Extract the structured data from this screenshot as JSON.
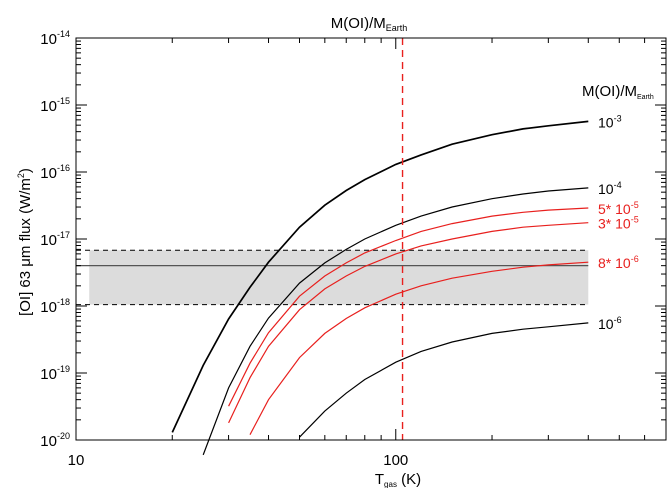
{
  "chart_data": {
    "type": "line",
    "title": {
      "base": "M(OI)/M",
      "sub": "Earth"
    },
    "xlabel": {
      "base": "T",
      "sub": "gas",
      "unit": " (K)"
    },
    "ylabel": {
      "prefix": "[OI] 63 ",
      "mu": "μ",
      "rest": "m flux (W/m",
      "sup": "2",
      "end": ")"
    },
    "legend_title": {
      "base": "M(OI)/M",
      "sub": "Earth"
    },
    "x_scale": "log",
    "y_scale": "log",
    "xlim": [
      10,
      700
    ],
    "ylim": [
      1e-20,
      1e-14
    ],
    "x_tick_labels": [
      {
        "value": 10,
        "text": "10"
      },
      {
        "value": 100,
        "text": "100"
      }
    ],
    "y_tick_labels": [
      {
        "value": 1e-14,
        "base": "10",
        "sup": "-14"
      },
      {
        "value": 1e-15,
        "base": "10",
        "sup": "-15"
      },
      {
        "value": 1e-16,
        "base": "10",
        "sup": "-16"
      },
      {
        "value": 1e-17,
        "base": "10",
        "sup": "-17"
      },
      {
        "value": 1e-18,
        "base": "10",
        "sup": "-18"
      },
      {
        "value": 1e-19,
        "base": "10",
        "sup": "-19"
      },
      {
        "value": 1e-20,
        "base": "10",
        "sup": "-20"
      }
    ],
    "x": [
      20,
      25,
      30,
      35,
      40,
      50,
      60,
      70,
      80,
      100,
      120,
      150,
      200,
      250,
      300,
      400
    ],
    "series": [
      {
        "color": "#000000",
        "label_base": "10",
        "label_sup": "-3",
        "values": [
          1.3e-20,
          1.3e-19,
          6.4e-19,
          1.9e-18,
          4.5e-18,
          1.5e-17,
          3.2e-17,
          5.3e-17,
          7.7e-17,
          1.3e-16,
          1.8e-16,
          2.6e-16,
          3.6e-16,
          4.4e-16,
          4.9e-16,
          5.7e-16
        ]
      },
      {
        "color": "#000000",
        "label_base": "10",
        "label_sup": "-4",
        "values": [
          null,
          6e-21,
          6e-20,
          2.5e-19,
          6.6e-19,
          2.2e-18,
          4.4e-18,
          7e-18,
          1e-17,
          1.6e-17,
          2.2e-17,
          3e-17,
          4e-17,
          4.7e-17,
          5.2e-17,
          5.8e-17
        ]
      },
      {
        "color": "#e8201e",
        "label_base": "5* 10",
        "label_sup": "-5",
        "values": [
          null,
          null,
          3.2e-20,
          1.4e-19,
          4e-19,
          1.4e-18,
          2.8e-18,
          4.4e-18,
          6.2e-18,
          9.5e-18,
          1.3e-17,
          1.7e-17,
          2.2e-17,
          2.5e-17,
          2.7e-17,
          2.9e-17
        ]
      },
      {
        "color": "#e8201e",
        "label_base": "3* 10",
        "label_sup": "-5",
        "values": [
          null,
          null,
          1.8e-20,
          8.5e-20,
          2.5e-19,
          8.8e-19,
          1.8e-18,
          2.8e-18,
          3.9e-18,
          6e-18,
          7.9e-18,
          1e-17,
          1.3e-17,
          1.5e-17,
          1.6e-17,
          1.75e-17
        ]
      },
      {
        "color": "#e8201e",
        "label_base": "8* 10",
        "label_sup": "-6",
        "values": [
          null,
          null,
          null,
          1.2e-20,
          4e-20,
          1.7e-19,
          3.9e-19,
          6.5e-19,
          9.4e-19,
          1.5e-18,
          2e-18,
          2.6e-18,
          3.3e-18,
          3.8e-18,
          4.1e-18,
          4.5e-18
        ]
      },
      {
        "color": "#000000",
        "label_base": "10",
        "label_sup": "-6",
        "values": [
          null,
          null,
          null,
          null,
          null,
          1.1e-20,
          2.7e-20,
          5e-20,
          8e-20,
          1.45e-19,
          2.1e-19,
          2.9e-19,
          3.9e-19,
          4.5e-19,
          4.9e-19,
          5.6e-19
        ]
      }
    ],
    "observed_band": {
      "x_range": [
        11,
        400
      ],
      "center": 4e-18,
      "low": 1.05e-18,
      "high": 6.8e-18
    },
    "vline": {
      "x": 105,
      "color": "#e8201e",
      "style": "dashed"
    },
    "grid": false,
    "legend": "right-side labels"
  }
}
